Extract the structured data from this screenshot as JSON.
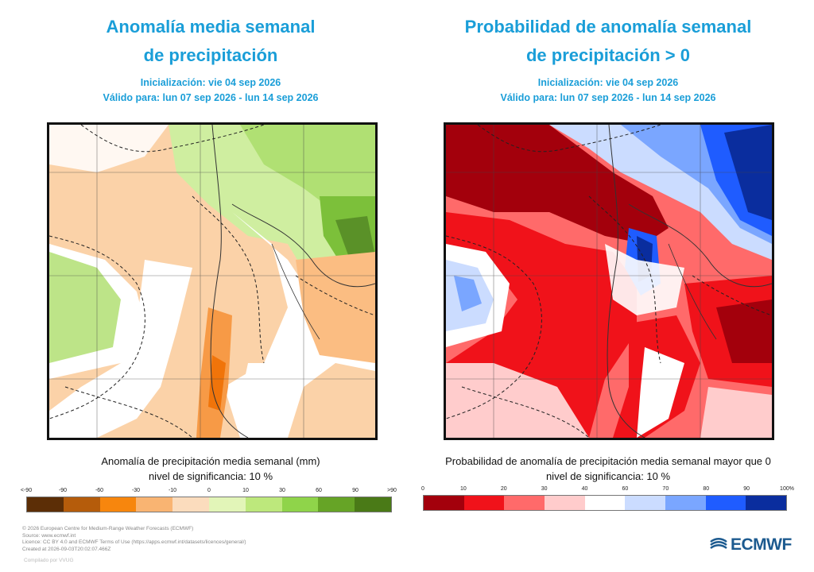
{
  "left": {
    "title_line1": "Anomalía media semanal",
    "title_line2": "de precipitación",
    "init": "Inicialización: vie 04 sep 2026",
    "valid": "Válido para: lun 07 sep 2026 - lun 14 sep 2026",
    "legend_title": "Anomalía de precipitación media semanal (mm)",
    "legend_sig": "nivel de significancia: 10 %",
    "ticks": [
      "<-90",
      "-90",
      "-60",
      "-30",
      "-10",
      "0",
      "10",
      "30",
      "60",
      "90",
      ">90"
    ],
    "colors": [
      "#5c2e06",
      "#b55c0b",
      "#f7860d",
      "#f9b472",
      "#fbdcbd",
      "#e2f5b8",
      "#bde87c",
      "#8fd44a",
      "#66a426",
      "#4a7a17"
    ]
  },
  "right": {
    "title_line1": "Probabilidad de anomalía semanal",
    "title_line2": "de precipitación > 0",
    "init": "Inicialización: vie 04 sep 2026",
    "valid": "Válido para: lun 07 sep 2026 - lun 14 sep 2026",
    "legend_title": "Probabilidad de anomalía de precipitación media semanal mayor que 0",
    "legend_sig": "nivel de significancia: 10 %",
    "ticks": [
      "0",
      "10",
      "20",
      "30",
      "40",
      "60",
      "70",
      "80",
      "90",
      "100%"
    ],
    "colors": [
      "#a3000c",
      "#f0121a",
      "#ff6a6a",
      "#ffcccc",
      "#ffffff",
      "#cbdcff",
      "#7aa6ff",
      "#1f5cff",
      "#0a2d9e"
    ]
  },
  "footer": {
    "line1": "© 2026 European Centre for Medium-Range Weather Forecasts (ECMWF)",
    "line2": "Source: www.ecmwf.int",
    "line3": "Licence: CC BY 4.0 and ECMWF Terms of Use (https://apps.ecmwf.int/datasets/licences/general/)",
    "line4": "Created at 2026-09-03T20:02:07.466Z"
  },
  "credit": "Compilado por VVUG",
  "logo": "ECMWF"
}
